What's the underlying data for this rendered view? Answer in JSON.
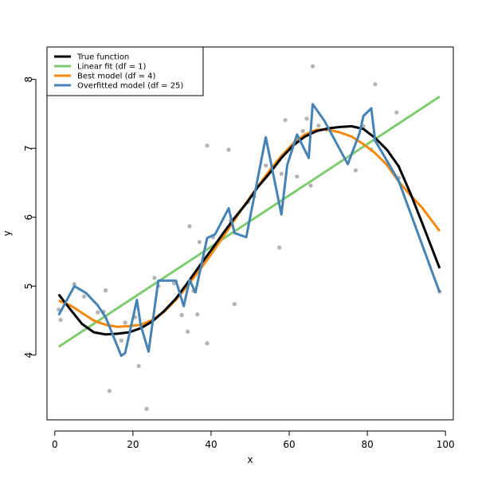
{
  "chart_data": {
    "type": "line",
    "title": "",
    "xlabel": "x",
    "ylabel": "y",
    "xlim": [
      -2,
      102
    ],
    "ylim": [
      3.06,
      8.47
    ],
    "xticks": [
      0,
      20,
      40,
      60,
      80,
      100
    ],
    "yticks": [
      4,
      5,
      6,
      7,
      8
    ],
    "grid": false,
    "legend_position": "top-left",
    "legend": [
      {
        "label": "True function",
        "color": "#000000"
      },
      {
        "label": "Linear fit (df = 1)",
        "color": "#7fcc70"
      },
      {
        "label": "Best model (df = 4)",
        "color": "#f5890f"
      },
      {
        "label": "Overfitted model (df = 25)",
        "color": "#4682b4"
      }
    ],
    "points": {
      "color": "#b3b3b3",
      "x": [
        1,
        1.5,
        5,
        7.5,
        11,
        12.5,
        13,
        14,
        17,
        18,
        20.5,
        21.5,
        23.5,
        25.5,
        26.5,
        30.5,
        32.5,
        34,
        34.5,
        35.5,
        36.5,
        37,
        39,
        39,
        40.5,
        44.5,
        45,
        46,
        49.5,
        51,
        54,
        57.5,
        58,
        59,
        62,
        63.5,
        64.5,
        65.5,
        66,
        67.5,
        69.5,
        77,
        79,
        81,
        82,
        87.5,
        88,
        98.5
      ],
      "y": [
        4.66,
        4.51,
        5.03,
        4.85,
        4.62,
        4.63,
        4.94,
        3.48,
        4.21,
        4.47,
        4.55,
        3.84,
        3.22,
        5.12,
        5.0,
        5.04,
        4.58,
        4.34,
        5.87,
        4.93,
        4.59,
        5.64,
        4.17,
        7.04,
        5.71,
        6.98,
        5.95,
        4.74,
        6.22,
        6.3,
        6.75,
        5.56,
        6.63,
        7.41,
        6.59,
        7.25,
        7.43,
        6.46,
        8.19,
        7.33,
        7.27,
        6.68,
        7.32,
        6.98,
        7.93,
        7.52,
        6.57,
        4.92
      ]
    },
    "series": [
      {
        "name": "True function",
        "color": "#000000",
        "x": [
          1,
          4,
          7,
          10,
          13,
          16,
          19,
          22,
          25,
          28,
          31,
          34,
          37,
          40,
          43,
          46,
          49,
          52,
          55,
          58,
          61,
          64,
          67,
          70,
          73,
          76,
          79,
          82,
          85,
          88,
          91,
          94,
          98.5
        ],
        "y": [
          4.88,
          4.66,
          4.45,
          4.33,
          4.3,
          4.31,
          4.33,
          4.39,
          4.49,
          4.64,
          4.82,
          5.05,
          5.29,
          5.52,
          5.76,
          5.99,
          6.2,
          6.44,
          6.64,
          6.86,
          7.04,
          7.17,
          7.25,
          7.29,
          7.31,
          7.32,
          7.28,
          7.15,
          6.98,
          6.74,
          6.35,
          5.92,
          5.26
        ]
      },
      {
        "name": "Linear fit",
        "color": "#7fcc70",
        "x": [
          1,
          98.5
        ],
        "y": [
          4.12,
          7.75
        ]
      },
      {
        "name": "Best model",
        "color": "#f5890f",
        "x": [
          1,
          4,
          7,
          10,
          13,
          16,
          19,
          22,
          25,
          28,
          31,
          34,
          37,
          40,
          43,
          46,
          49,
          52,
          55,
          58,
          61,
          64,
          67,
          70,
          73,
          76,
          79,
          82,
          85,
          88,
          91,
          94,
          98.5
        ],
        "y": [
          4.79,
          4.72,
          4.61,
          4.5,
          4.44,
          4.41,
          4.42,
          4.44,
          4.51,
          4.63,
          4.8,
          5.01,
          5.23,
          5.46,
          5.71,
          5.96,
          6.21,
          6.45,
          6.68,
          6.89,
          7.07,
          7.2,
          7.27,
          7.27,
          7.23,
          7.17,
          7.06,
          6.93,
          6.76,
          6.52,
          6.32,
          6.14,
          5.8
        ]
      },
      {
        "name": "Overfitted model",
        "color": "#4682b4",
        "x": [
          1,
          5,
          8,
          11,
          13,
          17,
          18,
          21,
          22,
          24,
          26.5,
          31,
          33,
          34.5,
          36,
          39,
          41,
          44.5,
          46,
          49,
          54,
          58,
          59.5,
          62,
          65,
          66,
          69,
          75,
          78,
          79,
          81,
          82,
          88,
          98.5
        ],
        "y": [
          4.58,
          5.0,
          4.9,
          4.72,
          4.55,
          3.99,
          4.03,
          4.8,
          4.43,
          4.05,
          5.08,
          5.08,
          4.71,
          5.09,
          4.91,
          5.7,
          5.75,
          6.13,
          5.77,
          5.71,
          7.16,
          6.04,
          6.76,
          7.2,
          6.86,
          7.64,
          7.4,
          6.77,
          7.22,
          7.47,
          7.58,
          7.11,
          6.53,
          4.91
        ]
      }
    ]
  }
}
